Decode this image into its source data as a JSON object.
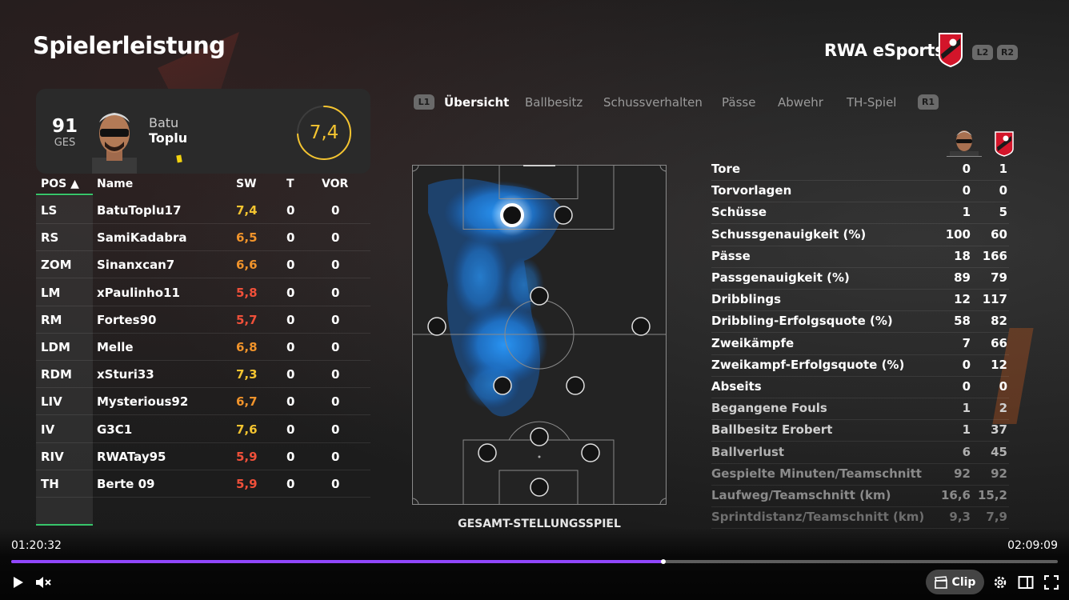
{
  "header": {
    "title": "Spielerleistung",
    "team_name": "RWA eSports",
    "shoulder_left": "L2",
    "shoulder_right": "R2"
  },
  "player_card": {
    "overall": "91",
    "overall_label": "GES",
    "first_name": "Batu",
    "last_name": "Toplu",
    "rating": "7,4",
    "rating_progress": 0.74
  },
  "table": {
    "headers": {
      "pos": "POS ▲",
      "name": "Name",
      "sw": "SW",
      "t": "T",
      "vor": "VOR"
    },
    "rows": [
      {
        "pos": "LS",
        "name": "BatuToplu17",
        "sw": "7,4",
        "t": "0",
        "vor": "0",
        "color": "#f4c430"
      },
      {
        "pos": "RS",
        "name": "SamiKadabra",
        "sw": "6,5",
        "t": "0",
        "vor": "0",
        "color": "#f0932b"
      },
      {
        "pos": "ZOM",
        "name": "Sinanxcan7",
        "sw": "6,6",
        "t": "0",
        "vor": "0",
        "color": "#f0932b"
      },
      {
        "pos": "LM",
        "name": "xPaulinho11",
        "sw": "5,8",
        "t": "0",
        "vor": "0",
        "color": "#f0503a"
      },
      {
        "pos": "RM",
        "name": "Fortes90",
        "sw": "5,7",
        "t": "0",
        "vor": "0",
        "color": "#f0503a"
      },
      {
        "pos": "LDM",
        "name": "Melle",
        "sw": "6,8",
        "t": "0",
        "vor": "0",
        "color": "#f0932b"
      },
      {
        "pos": "RDM",
        "name": "xSturi33",
        "sw": "7,3",
        "t": "0",
        "vor": "0",
        "color": "#f4c430"
      },
      {
        "pos": "LIV",
        "name": "Mysterious92",
        "sw": "6,7",
        "t": "0",
        "vor": "0",
        "color": "#f0932b"
      },
      {
        "pos": "IV",
        "name": "G3C1",
        "sw": "7,6",
        "t": "0",
        "vor": "0",
        "color": "#f4c430"
      },
      {
        "pos": "RIV",
        "name": "RWATay95",
        "sw": "5,9",
        "t": "0",
        "vor": "0",
        "color": "#f0503a"
      },
      {
        "pos": "TH",
        "name": "Berte 09",
        "sw": "5,9",
        "t": "0",
        "vor": "0",
        "color": "#f0503a"
      }
    ]
  },
  "tabs": {
    "shoulder_left": "L1",
    "shoulder_right": "R1",
    "items": [
      "Übersicht",
      "Ballbesitz",
      "Schussverhalten",
      "Pässe",
      "Abwehr",
      "TH-Spiel"
    ],
    "active": 0
  },
  "pitch": {
    "label": "GESAMT-STELLUNGSSPIEL"
  },
  "stats": {
    "rows": [
      {
        "label": "Tore",
        "player": "0",
        "team": "1",
        "dim": false
      },
      {
        "label": "Torvorlagen",
        "player": "0",
        "team": "0",
        "dim": false
      },
      {
        "label": "Schüsse",
        "player": "1",
        "team": "5",
        "dim": false
      },
      {
        "label": "Schussgenauigkeit (%)",
        "player": "100",
        "team": "60",
        "dim": false
      },
      {
        "label": "Pässe",
        "player": "18",
        "team": "166",
        "dim": false
      },
      {
        "label": "Passgenauigkeit (%)",
        "player": "89",
        "team": "79",
        "dim": false
      },
      {
        "label": "Dribblings",
        "player": "12",
        "team": "117",
        "dim": false
      },
      {
        "label": "Dribbling-Erfolgsquote (%)",
        "player": "58",
        "team": "82",
        "dim": false
      },
      {
        "label": "Zweikämpfe",
        "player": "7",
        "team": "66",
        "dim": false
      },
      {
        "label": "Zweikampf-Erfolgsquote (%)",
        "player": "0",
        "team": "12",
        "dim": false
      },
      {
        "label": "Abseits",
        "player": "0",
        "team": "0",
        "dim": false
      },
      {
        "label": "Begangene Fouls",
        "player": "1",
        "team": "2",
        "dim": 1
      },
      {
        "label": "Ballbesitz Erobert",
        "player": "1",
        "team": "37",
        "dim": 1
      },
      {
        "label": "Ballverlust",
        "player": "6",
        "team": "45",
        "dim": 2
      },
      {
        "label": "Gespielte Minuten/Teamschnitt",
        "player": "92",
        "team": "92",
        "dim": 3
      },
      {
        "label": "Laufweg/Teamschnitt (km)",
        "player": "16,6",
        "team": "15,2",
        "dim": 3
      },
      {
        "label": "Sprintdistanz/Teamschnitt (km)",
        "player": "9,3",
        "team": "7,9",
        "dim": 4
      }
    ]
  },
  "player_bar": {
    "current_time": "01:20:32",
    "total_time": "02:09:09",
    "progress": 0.623,
    "clip_label": "Clip",
    "accent": "#9147ff"
  }
}
